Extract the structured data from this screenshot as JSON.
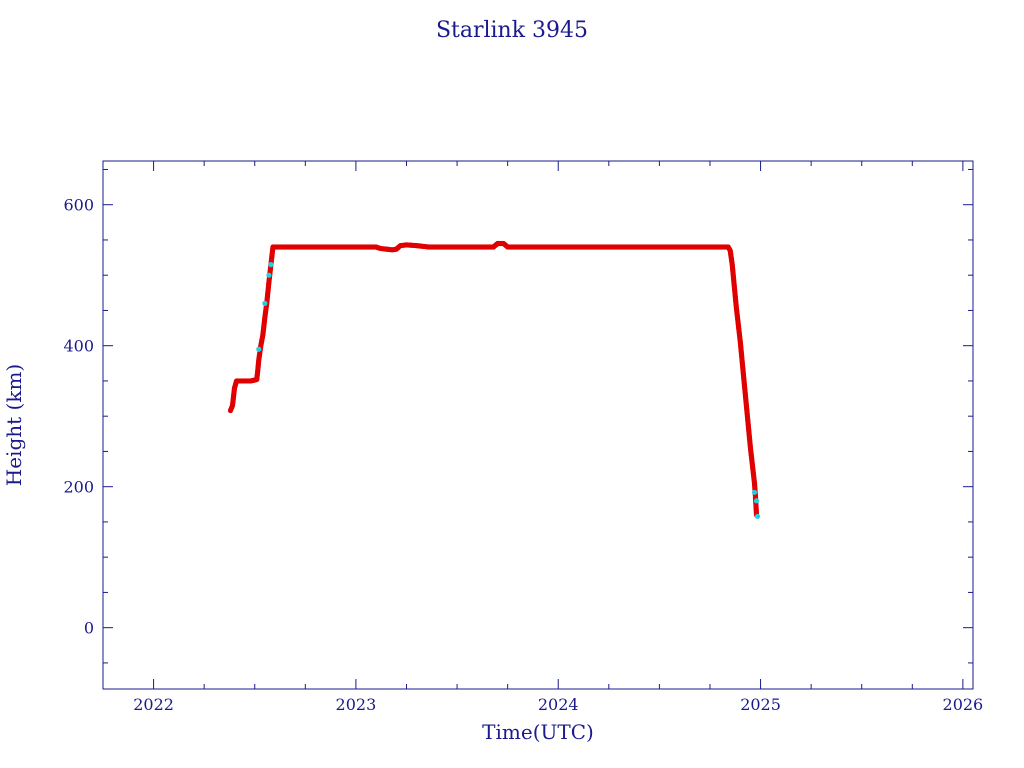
{
  "chart_data": {
    "type": "scatter",
    "title": "Starlink 3945",
    "xlabel": "Time(UTC)",
    "ylabel": "Height (km)",
    "xlim": [
      2021.75,
      2026.05
    ],
    "ylim": [
      -87,
      662
    ],
    "x_ticks": [
      2022,
      2023,
      2024,
      2025,
      2026
    ],
    "x_tick_labels": [
      "2022",
      "2023",
      "2024",
      "2025",
      "2026"
    ],
    "y_ticks": [
      0,
      200,
      400,
      600
    ],
    "y_tick_labels": [
      "0",
      "200",
      "400",
      "600"
    ],
    "grid": false,
    "colors": {
      "axis": "#1a1a8c",
      "series_main": "#e00000",
      "series_alt": "#20d0e0"
    },
    "series": [
      {
        "color": "#e00000",
        "x": [
          2022.38,
          2022.39,
          2022.4,
          2022.41,
          2022.42,
          2022.45,
          2022.48,
          2022.51,
          2022.515,
          2022.52,
          2022.53,
          2022.54,
          2022.55,
          2022.56,
          2022.57,
          2022.58,
          2022.59,
          2022.6,
          2022.65,
          2022.7,
          2022.8,
          2022.9,
          2023.0,
          2023.1,
          2023.12,
          2023.15,
          2023.18,
          2023.2,
          2023.22,
          2023.25,
          2023.3,
          2023.33,
          2023.36,
          2023.45,
          2023.55,
          2023.65,
          2023.68,
          2023.7,
          2023.73,
          2023.75,
          2023.85,
          2023.95,
          2024.05,
          2024.15,
          2024.25,
          2024.35,
          2024.45,
          2024.55,
          2024.65,
          2024.75,
          2024.82,
          2024.84,
          2024.85,
          2024.86,
          2024.87,
          2024.88,
          2024.89,
          2024.9,
          2024.91,
          2024.92,
          2024.93,
          2024.94,
          2024.95,
          2024.96,
          2024.97,
          2024.975,
          2024.98
        ],
        "y": [
          308,
          315,
          340,
          350,
          350,
          350,
          350,
          352,
          365,
          380,
          400,
          415,
          440,
          462,
          490,
          515,
          540,
          540,
          540,
          540,
          540,
          540,
          540,
          540,
          538,
          537,
          536,
          537,
          542,
          543,
          542,
          541,
          540,
          540,
          540,
          540,
          540,
          545,
          545,
          540,
          540,
          540,
          540,
          540,
          540,
          540,
          540,
          540,
          540,
          540,
          540,
          540,
          535,
          515,
          485,
          455,
          430,
          405,
          375,
          345,
          315,
          285,
          255,
          230,
          205,
          185,
          160
        ]
      },
      {
        "color": "#20d0e0",
        "x": [
          2022.52,
          2022.55,
          2022.57,
          2022.58,
          2024.97,
          2024.98,
          2024.985
        ],
        "y": [
          395,
          460,
          500,
          515,
          192,
          180,
          158
        ]
      }
    ]
  }
}
